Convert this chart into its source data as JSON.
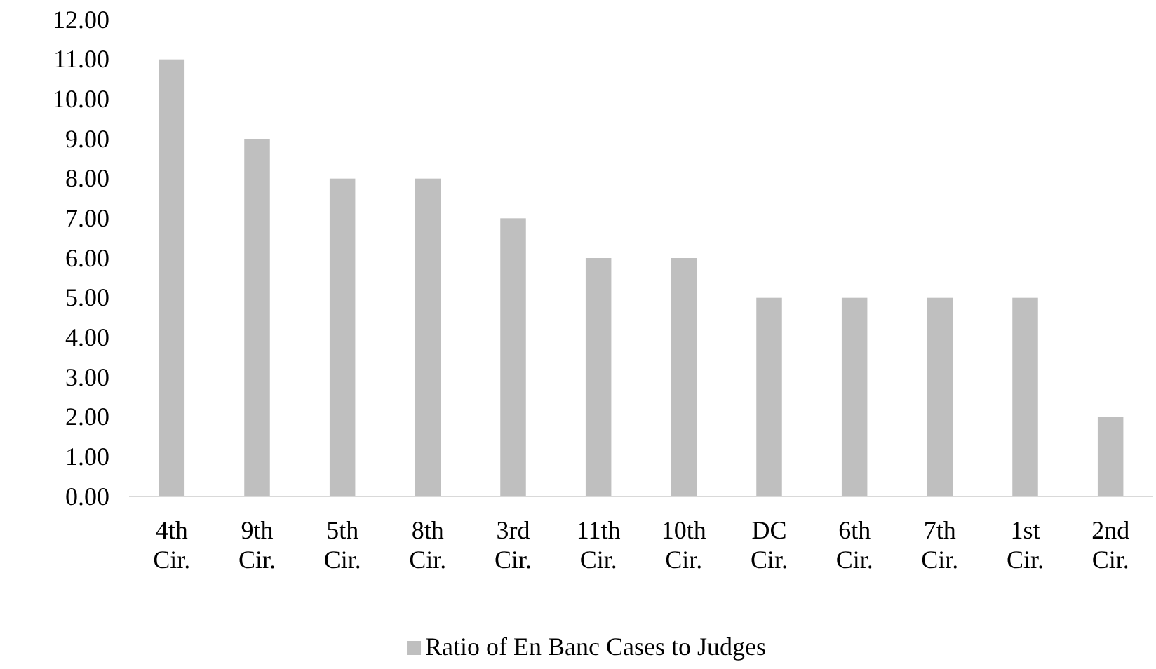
{
  "chart_data": {
    "type": "bar",
    "categories": [
      "4th Cir.",
      "9th Cir.",
      "5th Cir.",
      "8th Cir.",
      "3rd Cir.",
      "11th Cir.",
      "10th Cir.",
      "DC Cir.",
      "6th Cir.",
      "7th Cir.",
      "1st Cir.",
      "2nd Cir."
    ],
    "series": [
      {
        "name": "Ratio of En Banc Cases to Judges",
        "color": "#bfbfbf",
        "values": [
          11,
          9,
          8,
          8,
          7,
          6,
          6,
          5,
          5,
          5,
          5,
          2
        ]
      }
    ],
    "ylim": [
      0,
      12
    ],
    "yticks": [
      {
        "value": 0,
        "label": "0.00"
      },
      {
        "value": 1,
        "label": "1.00"
      },
      {
        "value": 2,
        "label": "2.00"
      },
      {
        "value": 3,
        "label": "3.00"
      },
      {
        "value": 4,
        "label": "4.00"
      },
      {
        "value": 5,
        "label": "5.00"
      },
      {
        "value": 6,
        "label": "6.00"
      },
      {
        "value": 7,
        "label": "7.00"
      },
      {
        "value": 8,
        "label": "8.00"
      },
      {
        "value": 9,
        "label": "9.00"
      },
      {
        "value": 10,
        "label": "10.00"
      },
      {
        "value": 11,
        "label": "11.00"
      },
      {
        "value": 12,
        "label": "12.00"
      }
    ],
    "grid": false,
    "legend": "bottom"
  }
}
